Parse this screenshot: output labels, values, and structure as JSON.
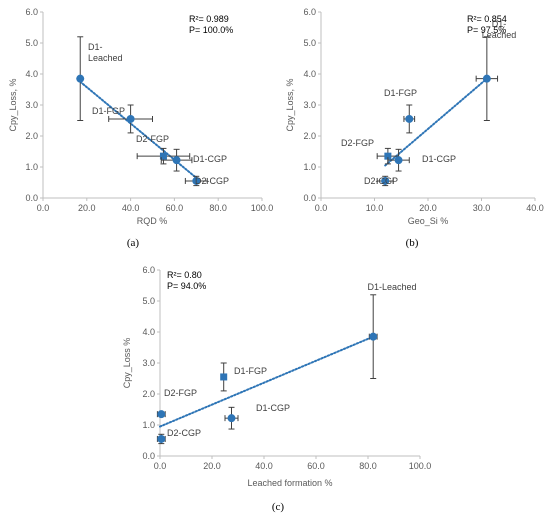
{
  "figure": {
    "panel_labels": [
      "(a)",
      "(b)",
      "(c)"
    ]
  },
  "colors": {
    "marker": "#2e75b6",
    "trendline": "#2e75b6",
    "errorbar": "#404040",
    "axis": "#bfbfbf",
    "text": "#595959"
  },
  "chart_data": [
    {
      "type": "scatter",
      "title": "",
      "xlabel": "RQD %",
      "ylabel": "Cpy_Loss, %",
      "xlim": [
        0,
        100
      ],
      "ylim": [
        0,
        6
      ],
      "xticks": [
        "0.0",
        "20.0",
        "40.0",
        "60.0",
        "80.0",
        "100.0"
      ],
      "yticks": [
        "0.0",
        "1.0",
        "2.0",
        "3.0",
        "4.0",
        "5.0",
        "6.0"
      ],
      "stats": [
        "R²= 0.989",
        "P= 100.0%"
      ],
      "trendline": {
        "style": "dotted",
        "x": [
          17,
          70
        ],
        "y": [
          3.75,
          0.65
        ]
      },
      "points": [
        {
          "label": "D1-\nLeached",
          "x": 17,
          "y": 3.85,
          "x_err": 0,
          "y_err": 1.35,
          "marker": "circle"
        },
        {
          "label": "D1-FGP",
          "x": 40,
          "y": 2.55,
          "x_err": 10,
          "y_err": 0.45,
          "marker": "circle"
        },
        {
          "label": "D2-FGP",
          "x": 55,
          "y": 1.35,
          "x_err": 12,
          "y_err": 0.25,
          "marker": "square"
        },
        {
          "label": "D1-CGP",
          "x": 61,
          "y": 1.22,
          "x_err": 7,
          "y_err": 0.35,
          "marker": "circle"
        },
        {
          "label": "D2-CGP",
          "x": 70,
          "y": 0.55,
          "x_err": 5,
          "y_err": 0.15,
          "marker": "circle"
        }
      ]
    },
    {
      "type": "scatter",
      "title": "",
      "xlabel": "Geo_Si %",
      "ylabel": "Cpy_Loss, %",
      "xlim": [
        0,
        40
      ],
      "ylim": [
        0,
        6
      ],
      "xticks": [
        "0.0",
        "10.0",
        "20.0",
        "30.0",
        "40.0"
      ],
      "yticks": [
        "0.0",
        "1.0",
        "2.0",
        "3.0",
        "4.0",
        "5.0",
        "6.0"
      ],
      "stats": [
        "R²= 0.854",
        "P= 97.5%"
      ],
      "trendline": {
        "style": "dotted",
        "x": [
          12,
          31
        ],
        "y": [
          1.05,
          3.85
        ]
      },
      "points": [
        {
          "label": "D1-\nLeached",
          "x": 31,
          "y": 3.85,
          "x_err": 2,
          "y_err": 1.35,
          "marker": "circle"
        },
        {
          "label": "D1-FGP",
          "x": 16.5,
          "y": 2.55,
          "x_err": 1,
          "y_err": 0.45,
          "marker": "circle"
        },
        {
          "label": "D2-FGP",
          "x": 12.5,
          "y": 1.35,
          "x_err": 2,
          "y_err": 0.25,
          "marker": "square"
        },
        {
          "label": "D1-CGP",
          "x": 14.5,
          "y": 1.22,
          "x_err": 2,
          "y_err": 0.35,
          "marker": "circle"
        },
        {
          "label": "D2-CGP",
          "x": 12,
          "y": 0.55,
          "x_err": 1.5,
          "y_err": 0.15,
          "marker": "circle"
        }
      ]
    },
    {
      "type": "scatter",
      "title": "",
      "xlabel": "Leached formation %",
      "ylabel": "Cpy_Loss %",
      "xlim": [
        0,
        100
      ],
      "ylim": [
        0,
        6
      ],
      "xticks": [
        "0.0",
        "20.0",
        "40.0",
        "60.0",
        "80.0",
        "100.0"
      ],
      "yticks": [
        "0.0",
        "1.0",
        "2.0",
        "3.0",
        "4.0",
        "5.0",
        "6.0"
      ],
      "stats": [
        "R²= 0.80",
        "P= 94.0%"
      ],
      "trendline": {
        "style": "dotted",
        "x": [
          0,
          82
        ],
        "y": [
          0.95,
          3.85
        ]
      },
      "points": [
        {
          "label": "D1-Leached",
          "x": 82,
          "y": 3.85,
          "x_err": 1.5,
          "y_err": 1.35,
          "marker": "circle"
        },
        {
          "label": "D1-FGP",
          "x": 24.5,
          "y": 2.55,
          "x_err": 0,
          "y_err": 0.45,
          "marker": "square"
        },
        {
          "label": "D2-FGP",
          "x": 0.5,
          "y": 1.35,
          "x_err": 1.5,
          "y_err": 0,
          "marker": "circle"
        },
        {
          "label": "D1-CGP",
          "x": 27.5,
          "y": 1.22,
          "x_err": 2.5,
          "y_err": 0.35,
          "marker": "circle"
        },
        {
          "label": "D2-CGP",
          "x": 0.5,
          "y": 0.55,
          "x_err": 1.5,
          "y_err": 0.15,
          "marker": "circle"
        }
      ]
    }
  ]
}
